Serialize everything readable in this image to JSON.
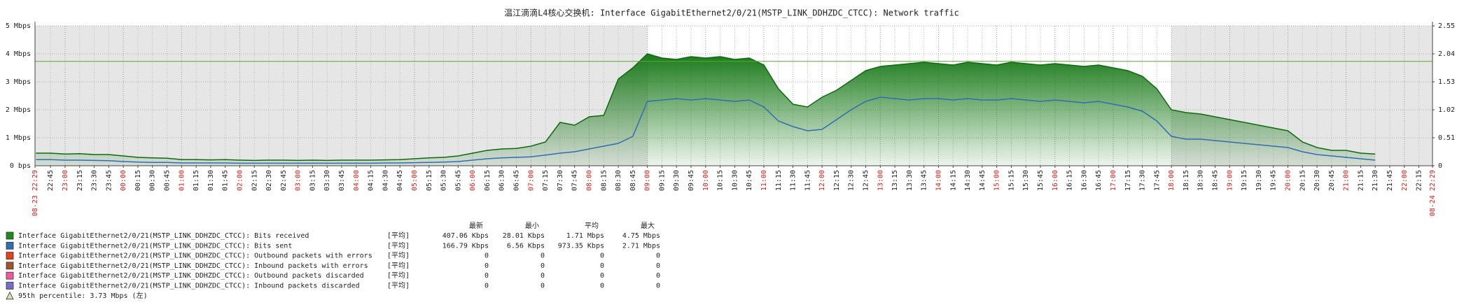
{
  "chart_data": {
    "type": "area",
    "title": "温江滴滴L4核心交换机: Interface GigabitEthernet2/0/21(MSTP_LINK_DDHZDC_CTCC): Network traffic",
    "xlim": [
      "08-23 22:29",
      "08-24 22:29"
    ],
    "xticks": [
      "22:45",
      "23:00",
      "23:15",
      "23:30",
      "23:45",
      "00:00",
      "00:15",
      "00:30",
      "00:45",
      "01:00",
      "01:15",
      "01:30",
      "01:45",
      "02:00",
      "02:15",
      "02:30",
      "02:45",
      "03:00",
      "03:15",
      "03:30",
      "03:45",
      "04:00",
      "04:15",
      "04:30",
      "04:45",
      "05:00",
      "05:15",
      "05:30",
      "05:45",
      "06:00",
      "06:15",
      "06:30",
      "06:45",
      "07:00",
      "07:15",
      "07:30",
      "07:45",
      "08:00",
      "08:15",
      "08:30",
      "08:45",
      "09:00",
      "09:15",
      "09:30",
      "09:45",
      "10:00",
      "10:15",
      "10:30",
      "10:45",
      "11:00",
      "11:15",
      "11:30",
      "11:45",
      "12:00",
      "12:15",
      "12:30",
      "12:45",
      "13:00",
      "13:15",
      "13:30",
      "13:45",
      "14:00",
      "14:15",
      "14:30",
      "14:45",
      "15:00",
      "15:15",
      "15:30",
      "15:45",
      "16:00",
      "16:15",
      "16:30",
      "16:45",
      "17:00",
      "17:15",
      "17:30",
      "17:45",
      "18:00",
      "18:15",
      "18:30",
      "18:45",
      "19:00",
      "19:15",
      "19:30",
      "19:45",
      "20:00",
      "20:15",
      "20:30",
      "20:45",
      "21:00",
      "21:15",
      "21:30",
      "21:45",
      "22:00",
      "22:15"
    ],
    "x": [
      "22:30",
      "22:45",
      "23:00",
      "23:15",
      "23:30",
      "23:45",
      "00:00",
      "00:15",
      "00:30",
      "00:45",
      "01:00",
      "01:15",
      "01:30",
      "01:45",
      "02:00",
      "02:15",
      "02:30",
      "02:45",
      "03:00",
      "03:15",
      "03:30",
      "03:45",
      "04:00",
      "04:15",
      "04:30",
      "04:45",
      "05:00",
      "05:15",
      "05:30",
      "05:45",
      "06:00",
      "06:15",
      "06:30",
      "06:45",
      "07:00",
      "07:15",
      "07:30",
      "07:45",
      "08:00",
      "08:15",
      "08:30",
      "08:45",
      "09:00",
      "09:15",
      "09:30",
      "09:45",
      "10:00",
      "10:15",
      "10:30",
      "10:45",
      "11:00",
      "11:15",
      "11:30",
      "11:45",
      "12:00",
      "12:15",
      "12:30",
      "12:45",
      "13:00",
      "13:15",
      "13:30",
      "13:45",
      "14:00",
      "14:15",
      "14:30",
      "14:45",
      "15:00",
      "15:15",
      "15:30",
      "15:45",
      "16:00",
      "16:15",
      "16:30",
      "16:45",
      "17:00",
      "17:15",
      "17:30",
      "17:45",
      "18:00",
      "18:15",
      "18:30",
      "18:45",
      "19:00",
      "19:15",
      "19:30",
      "19:45",
      "20:00",
      "20:15",
      "20:30",
      "20:45",
      "21:00",
      "21:15",
      "21:30"
    ],
    "ylim": [
      0,
      5
    ],
    "yticks": [
      {
        "value": 0,
        "label": "0 bps"
      },
      {
        "value": 1,
        "label": "1 Mbps"
      },
      {
        "value": 2,
        "label": "2 Mbps"
      },
      {
        "value": 3,
        "label": "3 Mbps"
      },
      {
        "value": 4,
        "label": "4 Mbps"
      },
      {
        "value": 5,
        "label": "5 Mbps"
      }
    ],
    "y2lim": [
      0,
      2.55
    ],
    "y2ticks": [
      0,
      0.51,
      1.02,
      1.53,
      2.04,
      2.55
    ],
    "grid": true,
    "work_period": [
      "09:00",
      "18:00"
    ],
    "legend_headers": [
      "最新",
      "最小",
      "平均",
      "最大"
    ],
    "series": [
      {
        "name": "Interface GigabitEthernet2/0/21(MSTP_LINK_DDHZDC_CTCC): Bits received",
        "color": "#1a8a1a",
        "fill": true,
        "values": [
          0.45,
          0.45,
          0.42,
          0.43,
          0.4,
          0.4,
          0.35,
          0.3,
          0.28,
          0.27,
          0.22,
          0.22,
          0.21,
          0.22,
          0.2,
          0.19,
          0.2,
          0.2,
          0.19,
          0.2,
          0.19,
          0.2,
          0.2,
          0.2,
          0.21,
          0.22,
          0.25,
          0.28,
          0.3,
          0.35,
          0.45,
          0.55,
          0.6,
          0.62,
          0.7,
          0.85,
          1.55,
          1.45,
          1.75,
          1.8,
          3.1,
          3.5,
          4.0,
          3.85,
          3.8,
          3.9,
          3.85,
          3.9,
          3.8,
          3.85,
          3.6,
          2.75,
          2.2,
          2.1,
          2.45,
          2.7,
          3.05,
          3.4,
          3.55,
          3.6,
          3.65,
          3.7,
          3.65,
          3.6,
          3.7,
          3.65,
          3.6,
          3.7,
          3.65,
          3.6,
          3.65,
          3.6,
          3.55,
          3.6,
          3.5,
          3.4,
          3.2,
          2.75,
          2.0,
          1.9,
          1.85,
          1.75,
          1.65,
          1.55,
          1.45,
          1.35,
          1.25,
          0.85,
          0.65,
          0.55,
          0.55,
          0.45,
          0.42
        ],
        "stats": {
          "func": "[平均]",
          "last": "407.06 Kbps",
          "min": "28.01 Kbps",
          "avg": "1.71 Mbps",
          "max": "4.75 Mbps"
        }
      },
      {
        "name": "Interface GigabitEthernet2/0/21(MSTP_LINK_DDHZDC_CTCC): Bits sent",
        "color": "#2f6db3",
        "fill": false,
        "values": [
          0.22,
          0.22,
          0.2,
          0.2,
          0.19,
          0.18,
          0.15,
          0.13,
          0.12,
          0.12,
          0.1,
          0.1,
          0.1,
          0.1,
          0.09,
          0.09,
          0.09,
          0.09,
          0.09,
          0.09,
          0.09,
          0.09,
          0.09,
          0.09,
          0.1,
          0.1,
          0.11,
          0.12,
          0.13,
          0.15,
          0.2,
          0.25,
          0.28,
          0.3,
          0.32,
          0.38,
          0.45,
          0.5,
          0.6,
          0.7,
          0.8,
          1.05,
          2.3,
          2.35,
          2.4,
          2.35,
          2.4,
          2.35,
          2.3,
          2.35,
          2.1,
          1.6,
          1.4,
          1.25,
          1.3,
          1.65,
          2.0,
          2.3,
          2.45,
          2.4,
          2.35,
          2.4,
          2.4,
          2.35,
          2.4,
          2.35,
          2.35,
          2.4,
          2.35,
          2.3,
          2.35,
          2.3,
          2.25,
          2.3,
          2.2,
          2.1,
          1.95,
          1.6,
          1.05,
          0.95,
          0.95,
          0.9,
          0.85,
          0.8,
          0.75,
          0.7,
          0.65,
          0.5,
          0.4,
          0.35,
          0.3,
          0.25,
          0.2
        ],
        "stats": {
          "func": "[平均]",
          "last": "166.79 Kbps",
          "min": "6.56 Kbps",
          "avg": "973.35 Kbps",
          "max": "2.71 Mbps"
        }
      },
      {
        "name": "Interface GigabitEthernet2/0/21(MSTP_LINK_DDHZDC_CTCC): Outbound packets with errors",
        "color": "#e8401c",
        "stats": {
          "func": "[平均]",
          "last": "0",
          "min": "0",
          "avg": "0",
          "max": "0"
        }
      },
      {
        "name": "Interface GigabitEthernet2/0/21(MSTP_LINK_DDHZDC_CTCC): Inbound packets with errors",
        "color": "#a0562d",
        "stats": {
          "func": "[平均]",
          "last": "0",
          "min": "0",
          "avg": "0",
          "max": "0"
        }
      },
      {
        "name": "Interface GigabitEthernet2/0/21(MSTP_LINK_DDHZDC_CTCC): Outbound packets discarded",
        "color": "#ee5aa0",
        "stats": {
          "func": "[平均]",
          "last": "0",
          "min": "0",
          "avg": "0",
          "max": "0"
        }
      },
      {
        "name": "Interface GigabitEthernet2/0/21(MSTP_LINK_DDHZDC_CTCC): Inbound packets discarded",
        "color": "#7c6acb",
        "stats": {
          "func": "[平均]",
          "last": "0",
          "min": "0",
          "avg": "0",
          "max": "0"
        }
      }
    ],
    "percentile": {
      "label": "95th percentile: 3.73 Mbps (左)",
      "value": 3.73,
      "color": "#5aa832"
    }
  }
}
